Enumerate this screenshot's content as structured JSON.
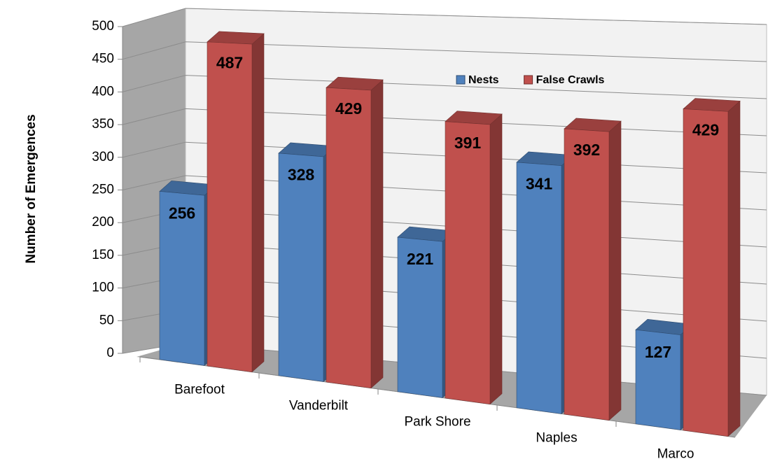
{
  "chart_data": {
    "type": "bar3d",
    "categories": [
      "Barefoot",
      "Vanderbilt",
      "Park Shore",
      "Naples",
      "Marco"
    ],
    "series": [
      {
        "name": "Nests",
        "color": "#4f81bd",
        "values": [
          256,
          328,
          221,
          341,
          127
        ]
      },
      {
        "name": "False Crawls",
        "color": "#c0504d",
        "values": [
          487,
          429,
          391,
          392,
          429
        ]
      }
    ],
    "ylabel": "Number of Emergences",
    "ylim": [
      0,
      500
    ],
    "yticks": [
      0,
      50,
      100,
      150,
      200,
      250,
      300,
      350,
      400,
      450,
      500
    ],
    "grid": true,
    "legend": "top",
    "data_labels": true
  }
}
